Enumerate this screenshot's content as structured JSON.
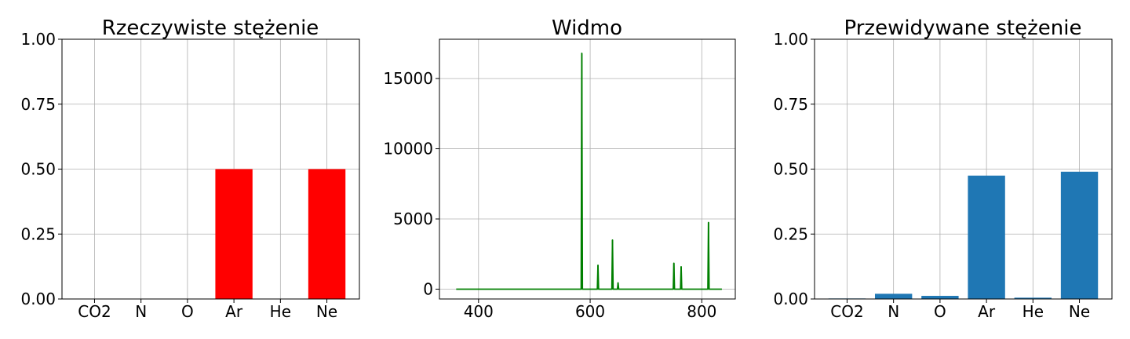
{
  "chart_data": [
    {
      "type": "bar",
      "title": "Rzeczywiste stężenie",
      "categories": [
        "CO2",
        "N",
        "O",
        "Ar",
        "He",
        "Ne"
      ],
      "values": [
        0.0,
        0.0,
        0.0,
        0.5,
        0.0,
        0.5
      ],
      "ylim": [
        0,
        1
      ],
      "yticks": [
        "0.00",
        "0.25",
        "0.50",
        "0.75",
        "1.00"
      ],
      "grid": true,
      "bar_color": "#ff0000"
    },
    {
      "type": "line",
      "title": "Widmo",
      "xlim": [
        330,
        860
      ],
      "ylim": [
        -700,
        17800
      ],
      "xticks": [
        "400",
        "600",
        "800"
      ],
      "yticks": [
        "0",
        "5000",
        "10000",
        "15000"
      ],
      "grid": true,
      "line_color": "#008000",
      "baseline_x": [
        360,
        836
      ],
      "peaks": [
        {
          "x": 585,
          "y": 16800
        },
        {
          "x": 614,
          "y": 1700
        },
        {
          "x": 640,
          "y": 3500
        },
        {
          "x": 650,
          "y": 450
        },
        {
          "x": 750,
          "y": 1850
        },
        {
          "x": 763,
          "y": 1600
        },
        {
          "x": 812,
          "y": 4750
        }
      ]
    },
    {
      "type": "bar",
      "title": "Przewidywane stężenie",
      "categories": [
        "CO2",
        "N",
        "O",
        "Ar",
        "He",
        "Ne"
      ],
      "values": [
        0.002,
        0.02,
        0.012,
        0.475,
        0.005,
        0.49
      ],
      "ylim": [
        0,
        1
      ],
      "yticks": [
        "0.00",
        "0.25",
        "0.50",
        "0.75",
        "1.00"
      ],
      "grid": true,
      "bar_color": "#1f77b4"
    }
  ]
}
